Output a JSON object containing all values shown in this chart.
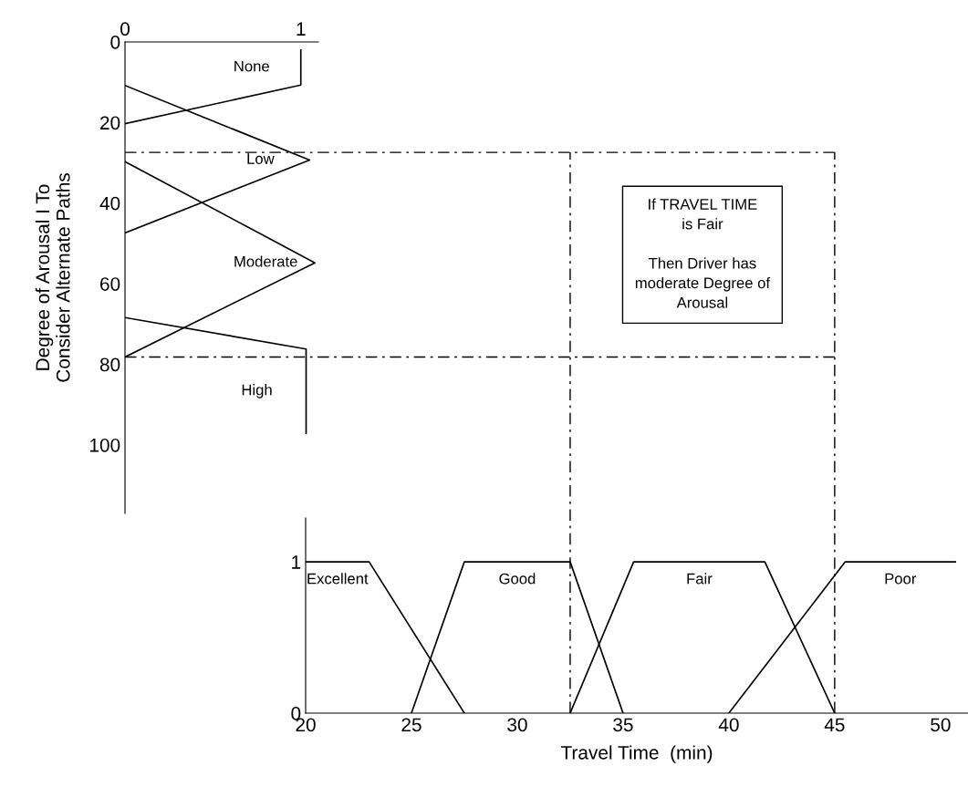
{
  "chart_data": [
    {
      "type": "line",
      "ylabel": "Degree of Arousal I To\nConsider Alternate Paths",
      "xlim": [
        0,
        1.1
      ],
      "xticks": [
        0,
        1
      ],
      "ylim": [
        117,
        0
      ],
      "yticks": [
        0,
        20,
        40,
        60,
        80,
        100
      ],
      "grid": false,
      "legend": false,
      "marker": "none",
      "series": [
        {
          "name": "None",
          "color": "#000000",
          "x": [
            1,
            1,
            0
          ],
          "values": [
            2,
            10.7,
            20.3
          ]
        },
        {
          "name": "Low",
          "color": "#000000",
          "x": [
            0,
            1.05,
            0
          ],
          "values": [
            10.8,
            29.3,
            47.4
          ]
        },
        {
          "name": "Moderate",
          "color": "#000000",
          "x": [
            0,
            1.08,
            0
          ],
          "values": [
            29.7,
            54.8,
            78.2
          ]
        },
        {
          "name": "High",
          "color": "#000000",
          "x": [
            0,
            1.03,
            1.03
          ],
          "values": [
            68.4,
            76.2,
            97.1
          ]
        }
      ],
      "ref_lines": [
        {
          "axis": "y",
          "value": 27.4,
          "color": "#000000",
          "line_style": "dashdot"
        },
        {
          "axis": "y",
          "value": 78.2,
          "color": "#000000",
          "line_style": "dashdot"
        }
      ]
    },
    {
      "type": "line",
      "xlabel": "Travel Time  (min)",
      "xlim": [
        20,
        51.3
      ],
      "xticks": [
        20,
        25,
        30,
        35,
        40,
        45,
        50
      ],
      "ylim": [
        0,
        1.29
      ],
      "yticks": [
        0,
        1
      ],
      "grid": false,
      "legend": false,
      "marker": "none",
      "series": [
        {
          "name": "Excellent",
          "color": "#000000",
          "x": [
            20,
            23,
            27.5
          ],
          "values": [
            1,
            1,
            0
          ]
        },
        {
          "name": "Good",
          "color": "#000000",
          "x": [
            25,
            27.5,
            32.5,
            35
          ],
          "values": [
            0,
            1,
            1,
            0
          ]
        },
        {
          "name": "Fair",
          "color": "#000000",
          "x": [
            32.5,
            35.5,
            41.7,
            45
          ],
          "values": [
            0,
            1,
            1,
            0
          ]
        },
        {
          "name": "Poor",
          "color": "#000000",
          "x": [
            40,
            45.5,
            50.7
          ],
          "values": [
            0,
            1,
            1
          ]
        }
      ],
      "ref_lines": [
        {
          "axis": "x",
          "value": 32.5,
          "color": "#000000",
          "line_style": "dashdot"
        },
        {
          "axis": "x",
          "value": 45,
          "color": "#000000",
          "line_style": "dashdot"
        }
      ],
      "annotations": [
        "If TRAVEL TIME\nis Fair\n\nThen Driver has\nmoderate Degree of\nArousal"
      ]
    }
  ]
}
